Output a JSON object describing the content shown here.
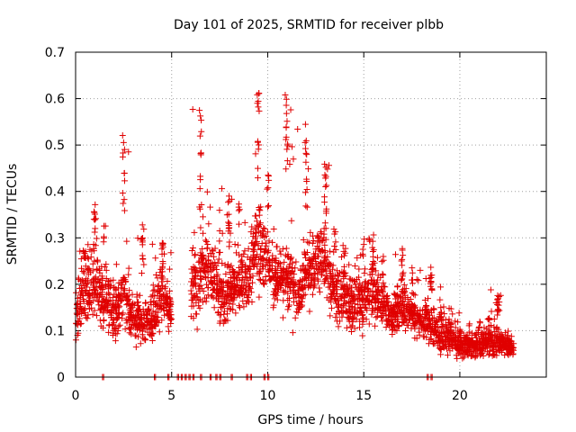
{
  "chart_data": {
    "type": "scatter",
    "title": "Day 101 of 2025, SRMTID for receiver plbb",
    "xlabel": "GPS time / hours",
    "ylabel": "SRMTID / TECUs",
    "xlim": [
      0,
      24.5
    ],
    "ylim": [
      0,
      0.7
    ],
    "xticks": [
      0,
      5,
      10,
      15,
      20
    ],
    "yticks": [
      0,
      0.1,
      0.2,
      0.3,
      0.4,
      0.5,
      0.6,
      0.7
    ],
    "xtick_labels": [
      "0",
      "5",
      "10",
      "15",
      "20"
    ],
    "ytick_labels": [
      "0",
      "0.1",
      "0.2",
      "0.3",
      "0.4",
      "0.5",
      "0.6",
      "0.7"
    ],
    "grid": true,
    "marker": "+",
    "color": "#e00000",
    "series": [
      {
        "name": "SRMTID",
        "envelope": [
          {
            "x": 0.0,
            "median": 0.14,
            "spread": 0.06,
            "max": 0.24
          },
          {
            "x": 0.5,
            "median": 0.19,
            "spread": 0.07,
            "max": 0.3
          },
          {
            "x": 1.0,
            "median": 0.2,
            "spread": 0.08,
            "max": 0.38
          },
          {
            "x": 1.5,
            "median": 0.17,
            "spread": 0.06,
            "max": 0.33
          },
          {
            "x": 2.0,
            "median": 0.15,
            "spread": 0.06,
            "max": 0.28
          },
          {
            "x": 2.5,
            "median": 0.18,
            "spread": 0.07,
            "max": 0.53
          },
          {
            "x": 3.0,
            "median": 0.13,
            "spread": 0.05,
            "max": 0.3
          },
          {
            "x": 3.5,
            "median": 0.12,
            "spread": 0.05,
            "max": 0.37
          },
          {
            "x": 4.0,
            "median": 0.13,
            "spread": 0.05,
            "max": 0.26
          },
          {
            "x": 4.5,
            "median": 0.17,
            "spread": 0.06,
            "max": 0.29
          },
          {
            "x": 5.0,
            "median": 0.14,
            "spread": 0.04,
            "max": 0.2
          },
          {
            "x": 5.5,
            "median": null,
            "spread": 0,
            "max": null
          },
          {
            "x": 6.0,
            "median": 0.19,
            "spread": 0.07,
            "max": 0.38
          },
          {
            "x": 6.5,
            "median": 0.22,
            "spread": 0.08,
            "max": 0.58
          },
          {
            "x": 7.0,
            "median": 0.24,
            "spread": 0.06,
            "max": 0.34
          },
          {
            "x": 7.5,
            "median": 0.17,
            "spread": 0.05,
            "max": 0.38
          },
          {
            "x": 8.0,
            "median": 0.19,
            "spread": 0.06,
            "max": 0.41
          },
          {
            "x": 8.5,
            "median": 0.2,
            "spread": 0.06,
            "max": 0.39
          },
          {
            "x": 9.0,
            "median": 0.22,
            "spread": 0.07,
            "max": 0.36
          },
          {
            "x": 9.5,
            "median": 0.29,
            "spread": 0.09,
            "max": 0.62
          },
          {
            "x": 10.0,
            "median": 0.25,
            "spread": 0.07,
            "max": 0.45
          },
          {
            "x": 10.5,
            "median": 0.21,
            "spread": 0.06,
            "max": 0.41
          },
          {
            "x": 11.0,
            "median": 0.23,
            "spread": 0.08,
            "max": 0.62
          },
          {
            "x": 11.5,
            "median": 0.18,
            "spread": 0.06,
            "max": 0.36
          },
          {
            "x": 12.0,
            "median": 0.23,
            "spread": 0.06,
            "max": 0.55
          },
          {
            "x": 12.5,
            "median": 0.24,
            "spread": 0.07,
            "max": 0.44
          },
          {
            "x": 13.0,
            "median": 0.25,
            "spread": 0.08,
            "max": 0.46
          },
          {
            "x": 13.5,
            "median": 0.18,
            "spread": 0.06,
            "max": 0.33
          },
          {
            "x": 14.0,
            "median": 0.17,
            "spread": 0.06,
            "max": 0.3
          },
          {
            "x": 14.5,
            "median": 0.16,
            "spread": 0.06,
            "max": 0.28
          },
          {
            "x": 15.0,
            "median": 0.17,
            "spread": 0.06,
            "max": 0.3
          },
          {
            "x": 15.5,
            "median": 0.18,
            "spread": 0.06,
            "max": 0.31
          },
          {
            "x": 16.0,
            "median": 0.16,
            "spread": 0.05,
            "max": 0.26
          },
          {
            "x": 16.5,
            "median": 0.13,
            "spread": 0.04,
            "max": 0.23
          },
          {
            "x": 17.0,
            "median": 0.15,
            "spread": 0.05,
            "max": 0.29
          },
          {
            "x": 17.5,
            "median": 0.14,
            "spread": 0.04,
            "max": 0.24
          },
          {
            "x": 18.0,
            "median": 0.12,
            "spread": 0.04,
            "max": 0.21
          },
          {
            "x": 18.5,
            "median": 0.12,
            "spread": 0.05,
            "max": 0.25
          },
          {
            "x": 19.0,
            "median": 0.09,
            "spread": 0.04,
            "max": 0.17
          },
          {
            "x": 19.5,
            "median": 0.08,
            "spread": 0.03,
            "max": 0.15
          },
          {
            "x": 20.0,
            "median": 0.07,
            "spread": 0.03,
            "max": 0.12
          },
          {
            "x": 20.5,
            "median": 0.065,
            "spread": 0.025,
            "max": 0.11
          },
          {
            "x": 21.0,
            "median": 0.07,
            "spread": 0.025,
            "max": 0.12
          },
          {
            "x": 21.5,
            "median": 0.075,
            "spread": 0.025,
            "max": 0.13
          },
          {
            "x": 22.0,
            "median": 0.08,
            "spread": 0.03,
            "max": 0.19
          },
          {
            "x": 22.5,
            "median": 0.065,
            "spread": 0.02,
            "max": 0.1
          },
          {
            "x": 22.8,
            "median": 0.06,
            "spread": 0.015,
            "max": 0.08
          }
        ],
        "zero_values_x": [
          1.4,
          4.1,
          4.8,
          5.3,
          5.5,
          5.7,
          5.9,
          6.1,
          6.5,
          7.0,
          7.3,
          7.5,
          8.1,
          8.9,
          9.1,
          9.8,
          10.0,
          18.3,
          18.5
        ]
      }
    ]
  }
}
